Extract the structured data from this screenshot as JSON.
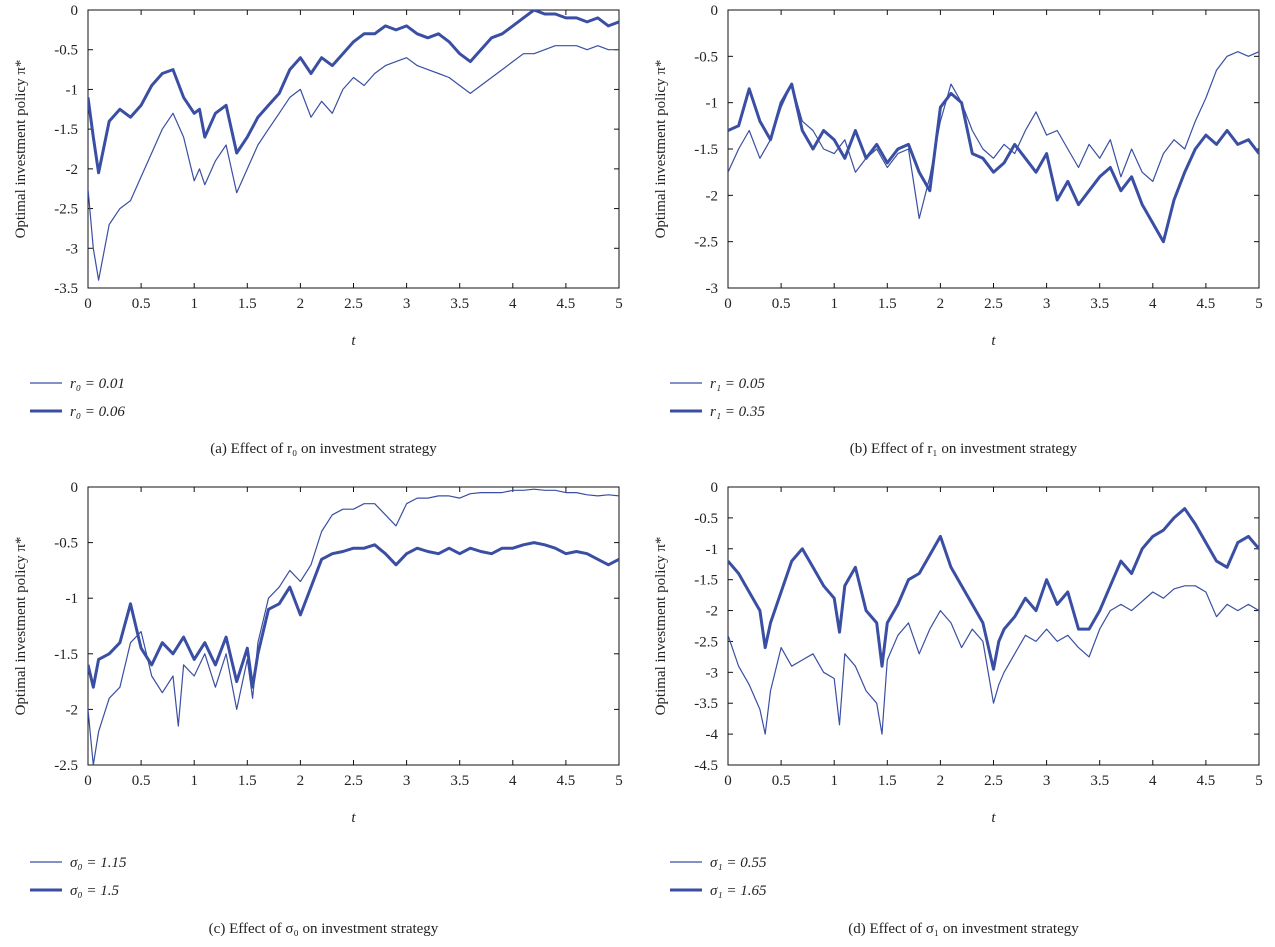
{
  "style": {
    "line_color": "#3a4fa3",
    "axis_color": "#111111"
  },
  "chart_data": [
    {
      "type": "line",
      "id": "a",
      "xlabel": "t",
      "ylabel": "Optimal investment policy π*",
      "xlim": [
        0,
        5
      ],
      "ylim": [
        -3.5,
        0
      ],
      "xticks": [
        "0",
        "0.5",
        "1",
        "1.5",
        "2",
        "2.5",
        "3",
        "3.5",
        "4",
        "4.5",
        "5"
      ],
      "yticks": [
        "-3.5",
        "-3",
        "-2.5",
        "-2",
        "-1.5",
        "-1",
        "-0.5",
        "0"
      ],
      "caption": "(a) Effect of r₀ on investment strategy",
      "legend_placement": "below",
      "series": [
        {
          "name": "r₀ = 0.01",
          "width": "thin",
          "x": [
            0,
            0.05,
            0.1,
            0.2,
            0.3,
            0.4,
            0.5,
            0.6,
            0.7,
            0.8,
            0.9,
            1.0,
            1.05,
            1.1,
            1.2,
            1.3,
            1.4,
            1.5,
            1.6,
            1.7,
            1.8,
            1.9,
            2.0,
            2.1,
            2.2,
            2.3,
            2.4,
            2.5,
            2.6,
            2.7,
            2.8,
            2.9,
            3.0,
            3.1,
            3.2,
            3.3,
            3.4,
            3.5,
            3.6,
            3.7,
            3.8,
            3.9,
            4.0,
            4.1,
            4.2,
            4.3,
            4.4,
            4.5,
            4.6,
            4.7,
            4.8,
            4.9,
            5.0
          ],
          "y": [
            -2.25,
            -3.0,
            -3.4,
            -2.7,
            -2.5,
            -2.4,
            -2.1,
            -1.8,
            -1.5,
            -1.3,
            -1.6,
            -2.15,
            -2.0,
            -2.2,
            -1.9,
            -1.7,
            -2.3,
            -2.0,
            -1.7,
            -1.5,
            -1.3,
            -1.1,
            -1.0,
            -1.35,
            -1.15,
            -1.3,
            -1.0,
            -0.85,
            -0.95,
            -0.8,
            -0.7,
            -0.65,
            -0.6,
            -0.7,
            -0.75,
            -0.8,
            -0.85,
            -0.95,
            -1.05,
            -0.95,
            -0.85,
            -0.75,
            -0.65,
            -0.55,
            -0.55,
            -0.5,
            -0.45,
            -0.45,
            -0.45,
            -0.5,
            -0.45,
            -0.5,
            -0.5
          ]
        },
        {
          "name": "r₀ = 0.06",
          "width": "thick",
          "x": [
            0,
            0.05,
            0.1,
            0.2,
            0.3,
            0.4,
            0.5,
            0.6,
            0.7,
            0.8,
            0.9,
            1.0,
            1.05,
            1.1,
            1.2,
            1.3,
            1.4,
            1.5,
            1.6,
            1.7,
            1.8,
            1.9,
            2.0,
            2.1,
            2.2,
            2.3,
            2.4,
            2.5,
            2.6,
            2.7,
            2.8,
            2.9,
            3.0,
            3.1,
            3.2,
            3.3,
            3.4,
            3.5,
            3.6,
            3.7,
            3.8,
            3.9,
            4.0,
            4.1,
            4.2,
            4.3,
            4.4,
            4.5,
            4.6,
            4.7,
            4.8,
            4.9,
            5.0
          ],
          "y": [
            -1.1,
            -1.6,
            -2.05,
            -1.4,
            -1.25,
            -1.35,
            -1.2,
            -0.95,
            -0.8,
            -0.75,
            -1.1,
            -1.3,
            -1.25,
            -1.6,
            -1.3,
            -1.2,
            -1.8,
            -1.6,
            -1.35,
            -1.2,
            -1.05,
            -0.75,
            -0.6,
            -0.8,
            -0.6,
            -0.7,
            -0.55,
            -0.4,
            -0.3,
            -0.3,
            -0.2,
            -0.25,
            -0.2,
            -0.3,
            -0.35,
            -0.3,
            -0.4,
            -0.55,
            -0.65,
            -0.5,
            -0.35,
            -0.3,
            -0.2,
            -0.1,
            0.0,
            -0.05,
            -0.05,
            -0.1,
            -0.1,
            -0.15,
            -0.1,
            -0.2,
            -0.15
          ]
        }
      ]
    },
    {
      "type": "line",
      "id": "b",
      "xlabel": "t",
      "ylabel": "Optimal investment policy π*",
      "xlim": [
        0,
        5
      ],
      "ylim": [
        -3,
        0
      ],
      "xticks": [
        "0",
        "0.5",
        "1",
        "1.5",
        "2",
        "2.5",
        "3",
        "3.5",
        "4",
        "4.5",
        "5"
      ],
      "yticks": [
        "-3",
        "-2.5",
        "-2",
        "-1.5",
        "-1",
        "-0.5",
        "0"
      ],
      "caption": "(b) Effect of r₁ on investment strategy",
      "legend_placement": "below",
      "series": [
        {
          "name": "r₁ = 0.05",
          "width": "thin",
          "x": [
            0,
            0.1,
            0.2,
            0.3,
            0.4,
            0.5,
            0.6,
            0.7,
            0.8,
            0.9,
            1.0,
            1.1,
            1.2,
            1.3,
            1.4,
            1.5,
            1.6,
            1.7,
            1.8,
            1.9,
            2.0,
            2.1,
            2.2,
            2.3,
            2.4,
            2.5,
            2.6,
            2.7,
            2.8,
            2.9,
            3.0,
            3.1,
            3.2,
            3.3,
            3.4,
            3.5,
            3.6,
            3.7,
            3.8,
            3.9,
            4.0,
            4.1,
            4.2,
            4.3,
            4.4,
            4.5,
            4.6,
            4.7,
            4.8,
            4.9,
            5.0
          ],
          "y": [
            -1.75,
            -1.5,
            -1.3,
            -1.6,
            -1.4,
            -1.05,
            -0.8,
            -1.2,
            -1.3,
            -1.5,
            -1.55,
            -1.4,
            -1.75,
            -1.6,
            -1.5,
            -1.7,
            -1.55,
            -1.5,
            -2.25,
            -1.8,
            -1.2,
            -0.8,
            -1.0,
            -1.3,
            -1.5,
            -1.6,
            -1.45,
            -1.55,
            -1.3,
            -1.1,
            -1.35,
            -1.3,
            -1.5,
            -1.7,
            -1.45,
            -1.6,
            -1.4,
            -1.8,
            -1.5,
            -1.75,
            -1.85,
            -1.55,
            -1.4,
            -1.5,
            -1.2,
            -0.95,
            -0.65,
            -0.5,
            -0.45,
            -0.5,
            -0.45
          ]
        },
        {
          "name": "r₁ = 0.35",
          "width": "thick",
          "x": [
            0,
            0.1,
            0.2,
            0.3,
            0.4,
            0.5,
            0.6,
            0.7,
            0.8,
            0.9,
            1.0,
            1.1,
            1.2,
            1.3,
            1.4,
            1.5,
            1.6,
            1.7,
            1.8,
            1.9,
            2.0,
            2.1,
            2.2,
            2.3,
            2.4,
            2.5,
            2.6,
            2.7,
            2.8,
            2.9,
            3.0,
            3.1,
            3.2,
            3.3,
            3.4,
            3.5,
            3.6,
            3.7,
            3.8,
            3.9,
            4.0,
            4.1,
            4.2,
            4.3,
            4.4,
            4.5,
            4.6,
            4.7,
            4.8,
            4.9,
            5.0
          ],
          "y": [
            -1.3,
            -1.25,
            -0.85,
            -1.2,
            -1.4,
            -1.0,
            -0.8,
            -1.3,
            -1.5,
            -1.3,
            -1.4,
            -1.6,
            -1.3,
            -1.6,
            -1.45,
            -1.65,
            -1.5,
            -1.45,
            -1.75,
            -1.95,
            -1.05,
            -0.9,
            -1.0,
            -1.55,
            -1.6,
            -1.75,
            -1.65,
            -1.45,
            -1.6,
            -1.75,
            -1.55,
            -2.05,
            -1.85,
            -2.1,
            -1.95,
            -1.8,
            -1.7,
            -1.95,
            -1.8,
            -2.1,
            -2.3,
            -2.5,
            -2.05,
            -1.75,
            -1.5,
            -1.35,
            -1.45,
            -1.3,
            -1.45,
            -1.4,
            -1.55
          ]
        }
      ]
    },
    {
      "type": "line",
      "id": "c",
      "xlabel": "t",
      "ylabel": "Optimal investment policy π*",
      "xlim": [
        0,
        5
      ],
      "ylim": [
        -2.5,
        0
      ],
      "xticks": [
        "0",
        "0.5",
        "1",
        "1.5",
        "2",
        "2.5",
        "3",
        "3.5",
        "4",
        "4.5",
        "5"
      ],
      "yticks": [
        "-2.5",
        "-2",
        "-1.5",
        "-1",
        "-0.5",
        "0"
      ],
      "caption": "(c) Effect of σ₀ on investment strategy",
      "legend_placement": "below",
      "series": [
        {
          "name": "σ₀ = 1.15",
          "width": "thin",
          "x": [
            0,
            0.05,
            0.1,
            0.2,
            0.3,
            0.4,
            0.5,
            0.6,
            0.7,
            0.8,
            0.85,
            0.9,
            1.0,
            1.1,
            1.2,
            1.3,
            1.4,
            1.5,
            1.55,
            1.6,
            1.7,
            1.8,
            1.9,
            2.0,
            2.1,
            2.2,
            2.3,
            2.4,
            2.5,
            2.6,
            2.7,
            2.8,
            2.9,
            3.0,
            3.1,
            3.2,
            3.3,
            3.4,
            3.5,
            3.6,
            3.7,
            3.8,
            3.9,
            4.0,
            4.1,
            4.2,
            4.3,
            4.4,
            4.5,
            4.6,
            4.7,
            4.8,
            4.9,
            5.0
          ],
          "y": [
            -2.0,
            -2.5,
            -2.2,
            -1.9,
            -1.8,
            -1.4,
            -1.3,
            -1.7,
            -1.85,
            -1.7,
            -2.15,
            -1.6,
            -1.7,
            -1.5,
            -1.8,
            -1.5,
            -2.0,
            -1.55,
            -1.9,
            -1.4,
            -1.0,
            -0.9,
            -0.75,
            -0.85,
            -0.7,
            -0.4,
            -0.25,
            -0.2,
            -0.2,
            -0.15,
            -0.15,
            -0.25,
            -0.35,
            -0.15,
            -0.1,
            -0.1,
            -0.08,
            -0.08,
            -0.1,
            -0.06,
            -0.05,
            -0.05,
            -0.05,
            -0.03,
            -0.03,
            -0.02,
            -0.03,
            -0.03,
            -0.05,
            -0.05,
            -0.07,
            -0.08,
            -0.07,
            -0.08
          ]
        },
        {
          "name": "σ₀ = 1.5",
          "width": "thick",
          "x": [
            0,
            0.05,
            0.1,
            0.2,
            0.3,
            0.4,
            0.5,
            0.6,
            0.7,
            0.8,
            0.9,
            1.0,
            1.1,
            1.2,
            1.3,
            1.4,
            1.5,
            1.55,
            1.6,
            1.7,
            1.8,
            1.9,
            2.0,
            2.1,
            2.2,
            2.3,
            2.4,
            2.5,
            2.6,
            2.7,
            2.8,
            2.9,
            3.0,
            3.1,
            3.2,
            3.3,
            3.4,
            3.5,
            3.6,
            3.7,
            3.8,
            3.9,
            4.0,
            4.1,
            4.2,
            4.3,
            4.4,
            4.5,
            4.6,
            4.7,
            4.8,
            4.9,
            5.0
          ],
          "y": [
            -1.6,
            -1.8,
            -1.55,
            -1.5,
            -1.4,
            -1.05,
            -1.45,
            -1.6,
            -1.4,
            -1.5,
            -1.35,
            -1.55,
            -1.4,
            -1.6,
            -1.35,
            -1.75,
            -1.45,
            -1.8,
            -1.5,
            -1.1,
            -1.05,
            -0.9,
            -1.15,
            -0.9,
            -0.65,
            -0.6,
            -0.58,
            -0.55,
            -0.55,
            -0.52,
            -0.6,
            -0.7,
            -0.6,
            -0.55,
            -0.58,
            -0.6,
            -0.55,
            -0.6,
            -0.55,
            -0.58,
            -0.6,
            -0.55,
            -0.55,
            -0.52,
            -0.5,
            -0.52,
            -0.55,
            -0.6,
            -0.58,
            -0.6,
            -0.65,
            -0.7,
            -0.65
          ]
        }
      ]
    },
    {
      "type": "line",
      "id": "d",
      "xlabel": "t",
      "ylabel": "Optimal investment policy π*",
      "xlim": [
        0,
        5
      ],
      "ylim": [
        -4.5,
        0
      ],
      "xticks": [
        "0",
        "0.5",
        "1",
        "1.5",
        "2",
        "2.5",
        "3",
        "3.5",
        "4",
        "4.5",
        "5"
      ],
      "yticks": [
        "-4.5",
        "-4",
        "-3.5",
        "-3",
        "-2.5",
        "-2",
        "-1.5",
        "-1",
        "-0.5",
        "0"
      ],
      "caption": "(d) Effect of σ₁ on investment strategy",
      "legend_placement": "below",
      "series": [
        {
          "name": "σ₁ = 0.55",
          "width": "thin",
          "x": [
            0,
            0.1,
            0.2,
            0.3,
            0.35,
            0.4,
            0.5,
            0.6,
            0.7,
            0.8,
            0.9,
            1.0,
            1.05,
            1.1,
            1.2,
            1.3,
            1.4,
            1.45,
            1.5,
            1.6,
            1.7,
            1.8,
            1.9,
            2.0,
            2.1,
            2.2,
            2.3,
            2.4,
            2.5,
            2.55,
            2.6,
            2.7,
            2.8,
            2.9,
            3.0,
            3.1,
            3.2,
            3.3,
            3.4,
            3.5,
            3.6,
            3.7,
            3.8,
            3.9,
            4.0,
            4.1,
            4.2,
            4.3,
            4.4,
            4.5,
            4.6,
            4.7,
            4.8,
            4.9,
            5.0
          ],
          "y": [
            -2.4,
            -2.9,
            -3.2,
            -3.6,
            -4.0,
            -3.3,
            -2.6,
            -2.9,
            -2.8,
            -2.7,
            -3.0,
            -3.1,
            -3.85,
            -2.7,
            -2.9,
            -3.3,
            -3.5,
            -4.0,
            -2.8,
            -2.4,
            -2.2,
            -2.7,
            -2.3,
            -2.0,
            -2.2,
            -2.6,
            -2.3,
            -2.5,
            -3.5,
            -3.2,
            -3.0,
            -2.7,
            -2.4,
            -2.5,
            -2.3,
            -2.5,
            -2.4,
            -2.6,
            -2.75,
            -2.3,
            -2.0,
            -1.9,
            -2.0,
            -1.85,
            -1.7,
            -1.8,
            -1.65,
            -1.6,
            -1.6,
            -1.7,
            -2.1,
            -1.9,
            -2.0,
            -1.9,
            -2.0
          ]
        },
        {
          "name": "σ₁ = 1.65",
          "width": "thick",
          "x": [
            0,
            0.1,
            0.2,
            0.3,
            0.35,
            0.4,
            0.5,
            0.6,
            0.7,
            0.8,
            0.9,
            1.0,
            1.05,
            1.1,
            1.2,
            1.3,
            1.4,
            1.45,
            1.5,
            1.6,
            1.7,
            1.8,
            1.9,
            2.0,
            2.1,
            2.2,
            2.3,
            2.4,
            2.5,
            2.55,
            2.6,
            2.7,
            2.8,
            2.9,
            3.0,
            3.1,
            3.2,
            3.3,
            3.4,
            3.5,
            3.6,
            3.7,
            3.8,
            3.9,
            4.0,
            4.1,
            4.2,
            4.3,
            4.4,
            4.5,
            4.6,
            4.7,
            4.8,
            4.9,
            5.0
          ],
          "y": [
            -1.2,
            -1.4,
            -1.7,
            -2.0,
            -2.6,
            -2.2,
            -1.7,
            -1.2,
            -1.0,
            -1.3,
            -1.6,
            -1.8,
            -2.35,
            -1.6,
            -1.3,
            -2.0,
            -2.2,
            -2.9,
            -2.2,
            -1.9,
            -1.5,
            -1.4,
            -1.1,
            -0.8,
            -1.3,
            -1.6,
            -1.9,
            -2.2,
            -2.95,
            -2.5,
            -2.3,
            -2.1,
            -1.8,
            -2.0,
            -1.5,
            -1.9,
            -1.7,
            -2.3,
            -2.3,
            -2.0,
            -1.6,
            -1.2,
            -1.4,
            -1.0,
            -0.8,
            -0.7,
            -0.5,
            -0.35,
            -0.6,
            -0.9,
            -1.2,
            -1.3,
            -0.9,
            -0.8,
            -1.0
          ]
        }
      ]
    }
  ]
}
